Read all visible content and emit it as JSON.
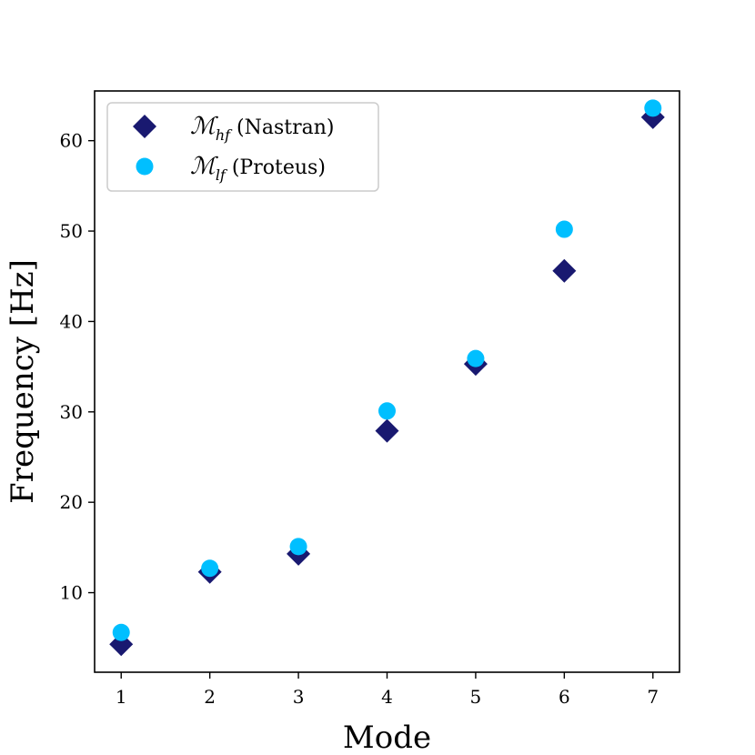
{
  "chart_data": {
    "type": "scatter",
    "title": "",
    "xlabel": "Mode",
    "ylabel": "Frequency [Hz]",
    "xlim": [
      0.7,
      7.3
    ],
    "ylim": [
      1.2,
      65.5
    ],
    "xticks": [
      1,
      2,
      3,
      4,
      5,
      6,
      7
    ],
    "yticks": [
      10,
      20,
      30,
      40,
      50,
      60
    ],
    "grid": false,
    "legend_position": "top-left",
    "series": [
      {
        "name": "ℳhf (Nastran)",
        "name_symbol": "ℳ",
        "name_subscript": "hf",
        "name_suffix": " (Nastran)",
        "marker": "diamond",
        "color": "#191970",
        "x": [
          1,
          2,
          3,
          4,
          5,
          6,
          7
        ],
        "y": [
          4.3,
          12.3,
          14.3,
          27.9,
          35.3,
          45.6,
          62.6
        ]
      },
      {
        "name": "ℳlf (Proteus)",
        "name_symbol": "ℳ",
        "name_subscript": "lf",
        "name_suffix": " (Proteus)",
        "marker": "circle",
        "color": "#00BFFF",
        "x": [
          1,
          2,
          3,
          4,
          5,
          6,
          7
        ],
        "y": [
          5.6,
          12.7,
          15.1,
          30.1,
          35.9,
          50.2,
          63.6
        ]
      }
    ]
  }
}
